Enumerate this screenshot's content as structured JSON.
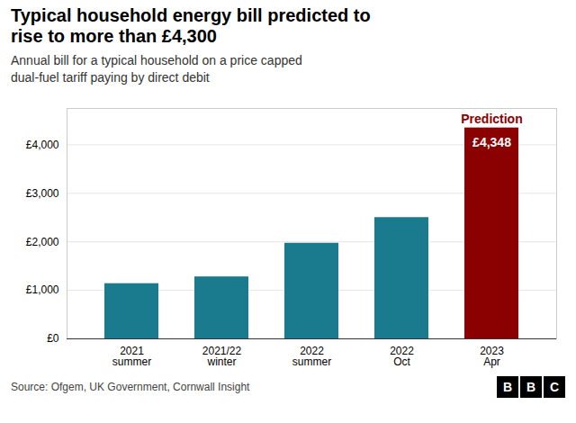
{
  "chart_data": {
    "type": "bar",
    "title": "Typical household energy bill predicted to\nrise to more than £4,300",
    "subtitle": "Annual bill for a typical household on a price capped\ndual-fuel tariff paying by direct debit",
    "categories": [
      "2021\nsummer",
      "2021/22\nwinter",
      "2022\nsummer",
      "2022\nOct",
      "2023\nApr"
    ],
    "values": [
      1138,
      1277,
      1971,
      2500,
      4348
    ],
    "colors": [
      "#1a7a8e",
      "#1a7a8e",
      "#1a7a8e",
      "#1a7a8e",
      "#8b0000"
    ],
    "value_labels": [
      null,
      null,
      null,
      null,
      "£4,348"
    ],
    "annotations": [
      {
        "text": "Prediction",
        "category": "2023\nApr",
        "color": "#8b0000"
      }
    ],
    "ylim": [
      0,
      4750
    ],
    "yticks": [
      {
        "value": 0,
        "label": "£0"
      },
      {
        "value": 1000,
        "label": "£1,000"
      },
      {
        "value": 2000,
        "label": "£2,000"
      },
      {
        "value": 3000,
        "label": "£3,000"
      },
      {
        "value": 4000,
        "label": "£4,000"
      }
    ],
    "grid": true,
    "source": "Source: Ofgem, UK Government, Cornwall Insight",
    "logo": "BBC"
  }
}
